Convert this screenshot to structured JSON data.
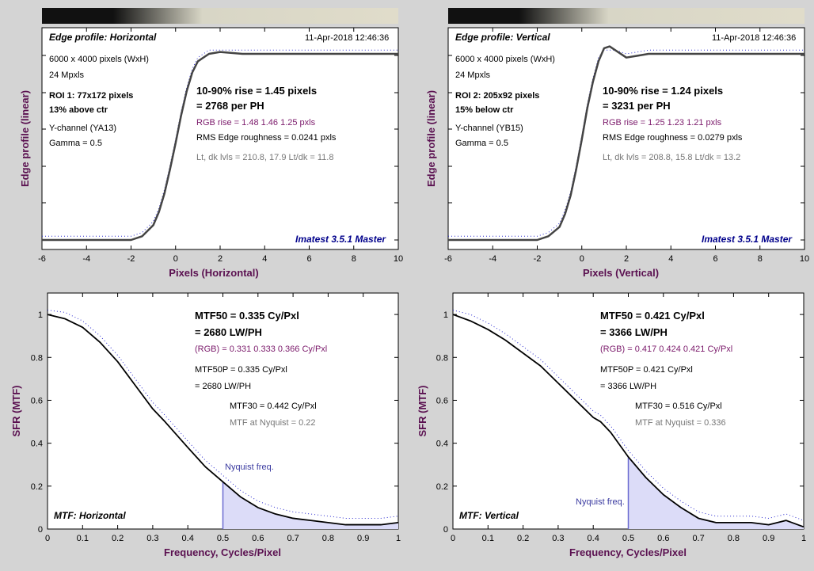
{
  "panels": {
    "edge_h": {
      "title": "Edge profile: Horizontal",
      "timestamp": "11-Apr-2018 12:46:36",
      "info": [
        "6000 x 4000 pixels (WxH)",
        "24 Mpxls"
      ],
      "roi": [
        "ROI 1:  77x172 pixels",
        "13% above ctr"
      ],
      "channel": [
        "Y-channel  (YA13)",
        "Gamma = 0.5"
      ],
      "rise": "10-90% rise = 1.45 pixels",
      "per_ph": "= 2768 per PH",
      "rgb_rise": "RGB rise = 1.48  1.46  1.25 pxls",
      "roughness": "RMS Edge roughness = 0.0241 pxls",
      "levels": "Lt, dk lvls = 210.8, 17.9   Lt/dk = 11.8",
      "watermark": "Imatest 3.5.1 Master",
      "xlabel": "Pixels (Horizontal)",
      "ylabel": "Edge profile (linear)"
    },
    "edge_v": {
      "title": "Edge profile: Vertical",
      "timestamp": "11-Apr-2018 12:46:36",
      "info": [
        "6000 x 4000 pixels (WxH)",
        "24 Mpxls"
      ],
      "roi": [
        "ROI 2:  205x92 pixels",
        "15% below ctr"
      ],
      "channel": [
        "Y-channel  (YB15)",
        "Gamma = 0.5"
      ],
      "rise": "10-90% rise = 1.24 pixels",
      "per_ph": "= 3231 per PH",
      "rgb_rise": "RGB rise = 1.25  1.23  1.21 pxls",
      "roughness": "RMS Edge roughness = 0.0279 pxls",
      "levels": "Lt, dk lvls = 208.8, 15.8   Lt/dk = 13.2",
      "watermark": "Imatest 3.5.1 Master",
      "xlabel": "Pixels (Vertical)",
      "ylabel": "Edge profile (linear)"
    },
    "mtf_h": {
      "title": "MTF: Horizontal",
      "mtf50": "MTF50 = 0.335 Cy/Pxl",
      "mtf50_lwph": "= 2680 LW/PH",
      "rgb": "(RGB) = 0.331  0.333  0.366 Cy/Pxl",
      "mtf50p": "MTF50P = 0.335 Cy/Pxl",
      "mtf50p_lwph": "= 2680 LW/PH",
      "mtf30": "MTF30 = 0.442 Cy/Pxl",
      "nyq": "MTF at Nyquist = 0.22",
      "nyq_label": "Nyquist freq.",
      "xlabel": "Frequency, Cycles/Pixel",
      "ylabel": "SFR (MTF)"
    },
    "mtf_v": {
      "title": "MTF: Vertical",
      "mtf50": "MTF50 = 0.421 Cy/Pxl",
      "mtf50_lwph": "= 3366 LW/PH",
      "rgb": "(RGB) = 0.417  0.424  0.421 Cy/Pxl",
      "mtf50p": "MTF50P = 0.421 Cy/Pxl",
      "mtf50p_lwph": "= 3366 LW/PH",
      "mtf30": "MTF30 = 0.516 Cy/Pxl",
      "nyq": "MTF at Nyquist = 0.336",
      "nyq_label": "Nyquist freq.",
      "xlabel": "Frequency, Cycles/Pixel",
      "ylabel": "SFR (MTF)"
    }
  },
  "chart_data": [
    {
      "id": "edge_h",
      "type": "line",
      "xlim": [
        -6,
        10
      ],
      "xticks": [
        "-6",
        "-4",
        "-2",
        "0",
        "2",
        "4",
        "6",
        "8",
        "10"
      ],
      "ylim": [
        0,
        1.05
      ],
      "series": [
        {
          "x": [
            -6,
            -4,
            -2,
            -1.5,
            -1,
            -0.75,
            -0.5,
            -0.25,
            0,
            0.25,
            0.5,
            0.75,
            1,
            1.5,
            2,
            3,
            4,
            6,
            8,
            10
          ],
          "y": [
            0.0,
            0.0,
            0.0,
            0.02,
            0.08,
            0.15,
            0.25,
            0.38,
            0.52,
            0.67,
            0.8,
            0.9,
            0.96,
            1.0,
            1.01,
            1.0,
            1.0,
            1.0,
            1.0,
            1.0
          ]
        }
      ]
    },
    {
      "id": "edge_v",
      "type": "line",
      "xlim": [
        -6,
        10
      ],
      "xticks": [
        "-6",
        "-4",
        "-2",
        "0",
        "2",
        "4",
        "6",
        "8",
        "10"
      ],
      "ylim": [
        0,
        1.05
      ],
      "series": [
        {
          "x": [
            -6,
            -4,
            -2,
            -1.5,
            -1,
            -0.75,
            -0.5,
            -0.25,
            0,
            0.25,
            0.5,
            0.75,
            1,
            1.25,
            1.5,
            2,
            2.5,
            3,
            4,
            6,
            8,
            10
          ],
          "y": [
            0.0,
            0.0,
            0.0,
            0.02,
            0.07,
            0.14,
            0.24,
            0.38,
            0.54,
            0.71,
            0.85,
            0.96,
            1.03,
            1.04,
            1.02,
            0.98,
            0.99,
            1.0,
            1.0,
            1.0,
            1.0,
            1.0
          ]
        }
      ]
    },
    {
      "id": "mtf_h",
      "type": "line",
      "xlim": [
        0,
        1
      ],
      "ylim": [
        0,
        1.1
      ],
      "xticks": [
        "0",
        "0.1",
        "0.2",
        "0.3",
        "0.4",
        "0.5",
        "0.6",
        "0.7",
        "0.8",
        "0.9",
        "1"
      ],
      "yticks": [
        "0",
        "0.2",
        "0.4",
        "0.6",
        "0.8",
        "1"
      ],
      "series": [
        {
          "x": [
            0,
            0.05,
            0.1,
            0.15,
            0.2,
            0.25,
            0.3,
            0.335,
            0.4,
            0.45,
            0.5,
            0.55,
            0.6,
            0.65,
            0.7,
            0.75,
            0.8,
            0.85,
            0.9,
            0.95,
            1.0
          ],
          "y": [
            1.0,
            0.98,
            0.94,
            0.87,
            0.78,
            0.67,
            0.56,
            0.5,
            0.38,
            0.29,
            0.22,
            0.15,
            0.1,
            0.07,
            0.05,
            0.04,
            0.03,
            0.02,
            0.02,
            0.02,
            0.03
          ]
        }
      ]
    },
    {
      "id": "mtf_v",
      "type": "line",
      "xlim": [
        0,
        1
      ],
      "ylim": [
        0,
        1.1
      ],
      "xticks": [
        "0",
        "0.1",
        "0.2",
        "0.3",
        "0.4",
        "0.5",
        "0.6",
        "0.7",
        "0.8",
        "0.9",
        "1"
      ],
      "yticks": [
        "0",
        "0.2",
        "0.4",
        "0.6",
        "0.8",
        "1"
      ],
      "series": [
        {
          "x": [
            0,
            0.05,
            0.1,
            0.15,
            0.2,
            0.25,
            0.3,
            0.35,
            0.4,
            0.421,
            0.45,
            0.5,
            0.55,
            0.6,
            0.65,
            0.7,
            0.75,
            0.8,
            0.85,
            0.9,
            0.95,
            1.0
          ],
          "y": [
            1.0,
            0.97,
            0.93,
            0.88,
            0.82,
            0.76,
            0.68,
            0.6,
            0.52,
            0.5,
            0.45,
            0.336,
            0.24,
            0.16,
            0.1,
            0.05,
            0.03,
            0.03,
            0.03,
            0.02,
            0.04,
            0.01
          ]
        }
      ]
    }
  ]
}
